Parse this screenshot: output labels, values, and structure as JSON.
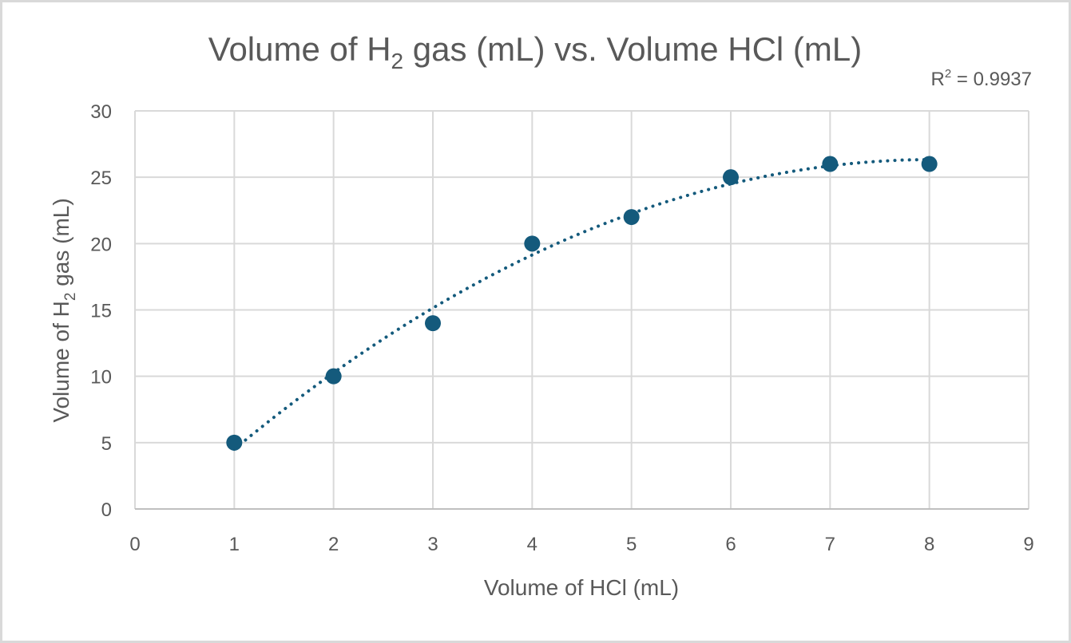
{
  "chart_data": {
    "type": "scatter",
    "title": "Volume of H2 gas (mL) vs. Volume HCl (mL)",
    "title_parts": {
      "pre": "Volume of H",
      "sub": "2",
      "post": " gas (mL) vs. Volume HCl (mL)"
    },
    "xlabel": "Volume of HCl (mL)",
    "ylabel": "Volume of H2 gas (mL)",
    "ylabel_parts": {
      "pre": "Volume of H",
      "sub": "2",
      "post": " gas (mL)"
    },
    "xlim": [
      0,
      9
    ],
    "ylim": [
      0,
      30
    ],
    "x_ticks": [
      "0",
      "1",
      "2",
      "3",
      "4",
      "5",
      "6",
      "7",
      "8",
      "9"
    ],
    "y_ticks": [
      "0",
      "5",
      "10",
      "15",
      "20",
      "25",
      "30"
    ],
    "grid": true,
    "legend": "none",
    "series": [
      {
        "name": "Volume of H2 gas",
        "x": [
          1,
          2,
          3,
          4,
          5,
          6,
          7,
          8
        ],
        "y": [
          5,
          10,
          14,
          20,
          22,
          25,
          26,
          26
        ],
        "marker_color": "#145a7c"
      }
    ],
    "trendline": {
      "type": "polynomial",
      "style": "dotted",
      "color": "#145a7c",
      "r_squared_label": "R² = 0.9937",
      "r_squared_parts": {
        "pre": "R",
        "sup": "2",
        "post": " = 0.9937"
      },
      "r_squared": 0.9937
    }
  },
  "colors": {
    "gridline": "#d9d9d9",
    "axis": "#bfbfbf",
    "text": "#595959",
    "marker": "#145a7c"
  }
}
